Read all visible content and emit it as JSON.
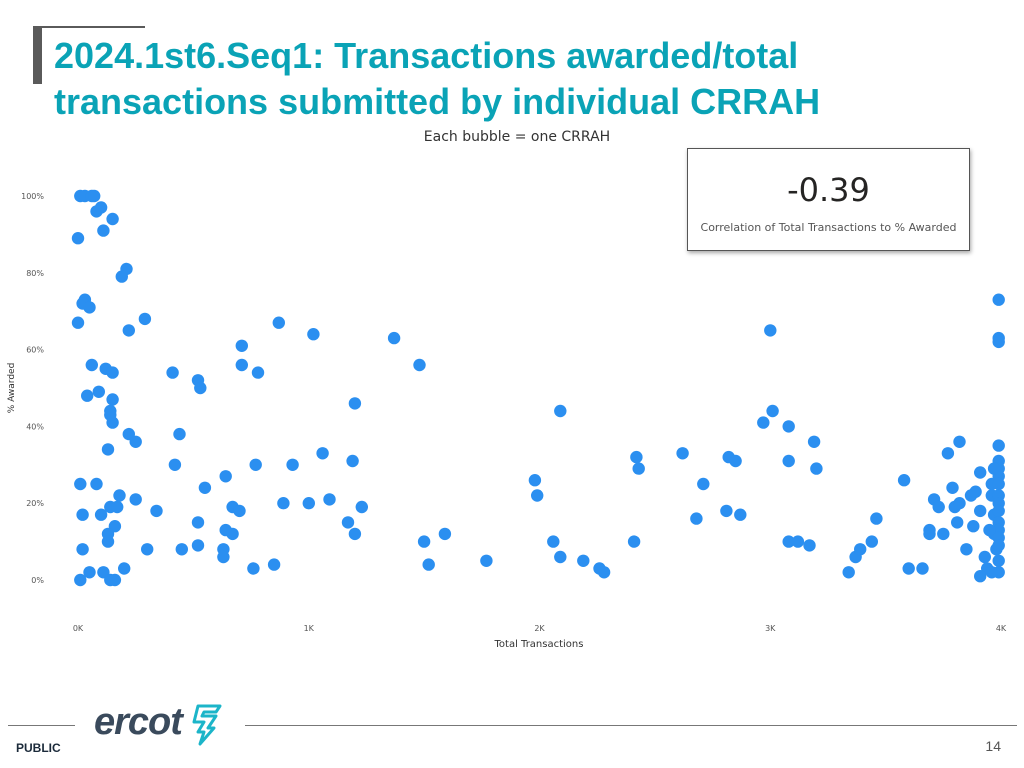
{
  "slide": {
    "title": "2024.1st6.Seq1: Transactions awarded/total transactions submitted by individual CRRAH",
    "footer_label": "PUBLIC",
    "page_number": "14",
    "logo_text": "ercot"
  },
  "kpi": {
    "value": "-0.39",
    "label": "Correlation of Total Transactions to % Awarded"
  },
  "colors": {
    "title": "#0aa3b6",
    "bubble": "#2b8ff0",
    "logo_accent": "#1cb5c9"
  },
  "chart_data": {
    "type": "scatter",
    "title": "Each bubble = one CRRAH",
    "xlabel": "Total Transactions",
    "ylabel": "% Awarded",
    "xlim": [
      0,
      4000
    ],
    "ylim": [
      0,
      100
    ],
    "x_ticks": [
      {
        "value": 0,
        "label": "0K"
      },
      {
        "value": 1000,
        "label": "1K"
      },
      {
        "value": 2000,
        "label": "2K"
      },
      {
        "value": 3000,
        "label": "3K"
      },
      {
        "value": 4000,
        "label": "4K"
      }
    ],
    "y_ticks": [
      {
        "value": 0,
        "label": "0%"
      },
      {
        "value": 20,
        "label": "20%"
      },
      {
        "value": 40,
        "label": "40%"
      },
      {
        "value": 60,
        "label": "60%"
      },
      {
        "value": 80,
        "label": "80%"
      },
      {
        "value": 100,
        "label": "100%"
      }
    ],
    "grid": false,
    "points": [
      [
        10,
        100
      ],
      [
        30,
        100
      ],
      [
        60,
        100
      ],
      [
        70,
        100
      ],
      [
        80,
        96
      ],
      [
        100,
        97
      ],
      [
        110,
        91
      ],
      [
        150,
        94
      ],
      [
        0,
        89
      ],
      [
        210,
        81
      ],
      [
        190,
        79
      ],
      [
        30,
        73
      ],
      [
        20,
        72
      ],
      [
        50,
        71
      ],
      [
        0,
        67
      ],
      [
        290,
        68
      ],
      [
        220,
        65
      ],
      [
        60,
        56
      ],
      [
        120,
        55
      ],
      [
        150,
        54
      ],
      [
        40,
        48
      ],
      [
        90,
        49
      ],
      [
        150,
        47
      ],
      [
        140,
        44
      ],
      [
        150,
        41
      ],
      [
        140,
        43
      ],
      [
        130,
        34
      ],
      [
        220,
        38
      ],
      [
        250,
        36
      ],
      [
        10,
        25
      ],
      [
        80,
        25
      ],
      [
        180,
        22
      ],
      [
        250,
        21
      ],
      [
        20,
        17
      ],
      [
        100,
        17
      ],
      [
        140,
        19
      ],
      [
        170,
        19
      ],
      [
        160,
        14
      ],
      [
        130,
        12
      ],
      [
        130,
        10
      ],
      [
        20,
        8
      ],
      [
        300,
        8
      ],
      [
        10,
        0
      ],
      [
        50,
        2
      ],
      [
        110,
        2
      ],
      [
        140,
        0
      ],
      [
        160,
        0
      ],
      [
        200,
        3
      ],
      [
        410,
        54
      ],
      [
        520,
        52
      ],
      [
        530,
        50
      ],
      [
        440,
        38
      ],
      [
        420,
        30
      ],
      [
        550,
        24
      ],
      [
        340,
        18
      ],
      [
        520,
        15
      ],
      [
        640,
        27
      ],
      [
        670,
        19
      ],
      [
        700,
        18
      ],
      [
        640,
        13
      ],
      [
        670,
        12
      ],
      [
        450,
        8
      ],
      [
        520,
        9
      ],
      [
        630,
        8
      ],
      [
        630,
        6
      ],
      [
        710,
        61
      ],
      [
        710,
        56
      ],
      [
        780,
        54
      ],
      [
        870,
        67
      ],
      [
        1020,
        64
      ],
      [
        770,
        30
      ],
      [
        930,
        30
      ],
      [
        890,
        20
      ],
      [
        1000,
        20
      ],
      [
        1060,
        33
      ],
      [
        1200,
        46
      ],
      [
        1190,
        31
      ],
      [
        1090,
        21
      ],
      [
        1170,
        15
      ],
      [
        1230,
        19
      ],
      [
        1200,
        12
      ],
      [
        760,
        3
      ],
      [
        850,
        4
      ],
      [
        1370,
        63
      ],
      [
        1480,
        56
      ],
      [
        1500,
        10
      ],
      [
        1590,
        12
      ],
      [
        1520,
        4
      ],
      [
        1770,
        5
      ],
      [
        2090,
        44
      ],
      [
        1980,
        26
      ],
      [
        1990,
        22
      ],
      [
        2060,
        10
      ],
      [
        2090,
        6
      ],
      [
        2190,
        5
      ],
      [
        2260,
        3
      ],
      [
        2280,
        2
      ],
      [
        2410,
        10
      ],
      [
        2420,
        32
      ],
      [
        2430,
        29
      ],
      [
        2620,
        33
      ],
      [
        2710,
        25
      ],
      [
        2680,
        16
      ],
      [
        2820,
        32
      ],
      [
        2850,
        31
      ],
      [
        2810,
        18
      ],
      [
        2870,
        17
      ],
      [
        3000,
        65
      ],
      [
        3010,
        44
      ],
      [
        2970,
        41
      ],
      [
        3080,
        40
      ],
      [
        3190,
        36
      ],
      [
        3080,
        31
      ],
      [
        3200,
        29
      ],
      [
        3080,
        10
      ],
      [
        3120,
        10
      ],
      [
        3170,
        9
      ],
      [
        3340,
        2
      ],
      [
        3370,
        6
      ],
      [
        3390,
        8
      ],
      [
        3440,
        10
      ],
      [
        3460,
        16
      ],
      [
        3580,
        26
      ],
      [
        3600,
        3
      ],
      [
        3660,
        3
      ],
      [
        3690,
        13
      ],
      [
        3690,
        12
      ],
      [
        3710,
        21
      ],
      [
        3730,
        19
      ],
      [
        3750,
        12
      ],
      [
        3770,
        33
      ],
      [
        3790,
        24
      ],
      [
        3800,
        19
      ],
      [
        3810,
        15
      ],
      [
        3820,
        36
      ],
      [
        3820,
        20
      ],
      [
        3850,
        8
      ],
      [
        3870,
        22
      ],
      [
        3890,
        23
      ],
      [
        3880,
        14
      ],
      [
        3910,
        18
      ],
      [
        3910,
        28
      ],
      [
        3930,
        6
      ],
      [
        3940,
        3
      ],
      [
        3960,
        25
      ],
      [
        3960,
        22
      ],
      [
        3970,
        17
      ],
      [
        3970,
        12
      ],
      [
        3980,
        8
      ],
      [
        3990,
        73
      ],
      [
        3990,
        63
      ],
      [
        3990,
        62
      ],
      [
        3990,
        35
      ],
      [
        3990,
        31
      ],
      [
        3990,
        29
      ],
      [
        3990,
        27
      ],
      [
        3990,
        25
      ],
      [
        3990,
        22
      ],
      [
        3990,
        20
      ],
      [
        3990,
        18
      ],
      [
        3990,
        15
      ],
      [
        3990,
        13
      ],
      [
        3990,
        11
      ],
      [
        3990,
        9
      ],
      [
        3990,
        5
      ],
      [
        3990,
        2
      ],
      [
        3970,
        29
      ],
      [
        3950,
        13
      ],
      [
        3910,
        1
      ],
      [
        3960,
        2
      ]
    ]
  }
}
